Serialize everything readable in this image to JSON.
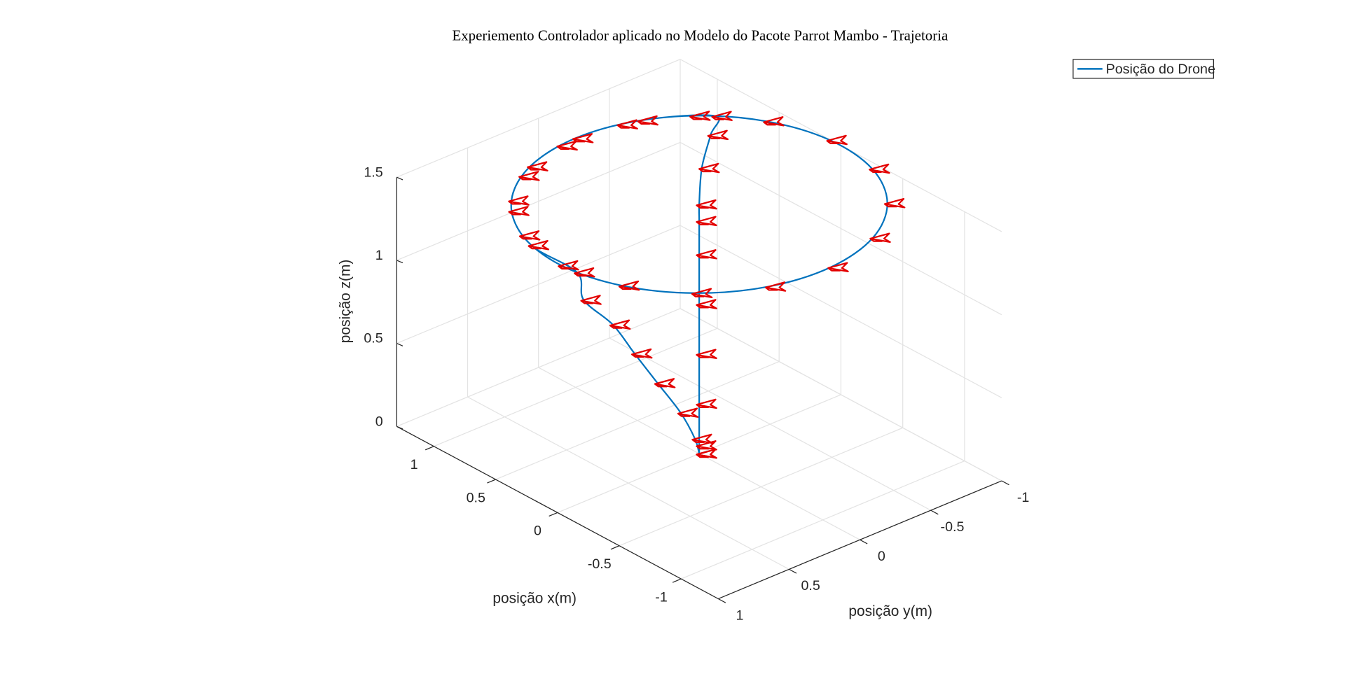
{
  "chart_data": {
    "type": "line3d",
    "title": "Experiemento Controlador aplicado no Modelo do Pacote Parrot Mambo - Trajetoria",
    "xlabel": "posição x(m)",
    "ylabel": "posição y(m)",
    "zlabel": "posição z(m)",
    "series": [
      {
        "name": "Posição do Drone",
        "color": "#0072bd",
        "x": [
          0,
          0,
          0,
          0,
          0,
          0,
          0,
          0,
          0.3,
          0.55,
          0.697,
          0.921,
          1,
          0.921,
          0.697,
          0.362,
          -0.029,
          -0.416,
          -0.737,
          -0.942,
          -0.998,
          -0.897,
          -0.654,
          -0.307,
          0.087,
          0.469,
          0.776,
          0.96,
          0.993,
          0.869,
          0.608,
          0.248,
          -0.146,
          -0.12,
          -0.08,
          -0.05,
          -0.03,
          -0.01,
          0,
          0
        ],
        "y": [
          0,
          0,
          0,
          0,
          0,
          0,
          0,
          0,
          -0.28,
          -0.56,
          -0.717,
          -0.389,
          0,
          0.389,
          0.717,
          0.932,
          1,
          0.909,
          0.675,
          0.335,
          -0.058,
          -0.443,
          -0.757,
          -0.952,
          -0.996,
          -0.883,
          -0.631,
          -0.279,
          0.117,
          0.494,
          0.794,
          0.969,
          0.989,
          0.92,
          0.68,
          0.5,
          0.32,
          0.14,
          0.03,
          0
        ],
        "z": [
          0,
          0.05,
          0.3,
          0.6,
          0.9,
          1.2,
          1.4,
          1.5,
          1.5,
          1.5,
          1.5,
          1.5,
          1.5,
          1.5,
          1.5,
          1.5,
          1.5,
          1.5,
          1.5,
          1.5,
          1.5,
          1.5,
          1.5,
          1.5,
          1.5,
          1.5,
          1.5,
          1.5,
          1.5,
          1.5,
          1.5,
          1.5,
          1.5,
          1.3,
          1.05,
          0.8,
          0.55,
          0.3,
          0.1,
          0
        ]
      }
    ],
    "marker_color": "#e30000",
    "xlim": [
      -1.3,
      1.3
    ],
    "ylim": [
      -1,
      1
    ],
    "zlim": [
      0,
      1.5
    ],
    "xticks": [
      -1,
      -0.5,
      0,
      0.5,
      1
    ],
    "yticks": [
      -1,
      -0.5,
      0,
      0.5,
      1
    ],
    "zticks": [
      0,
      0.5,
      1,
      1.5
    ],
    "grid": true,
    "legend": "upper right"
  }
}
